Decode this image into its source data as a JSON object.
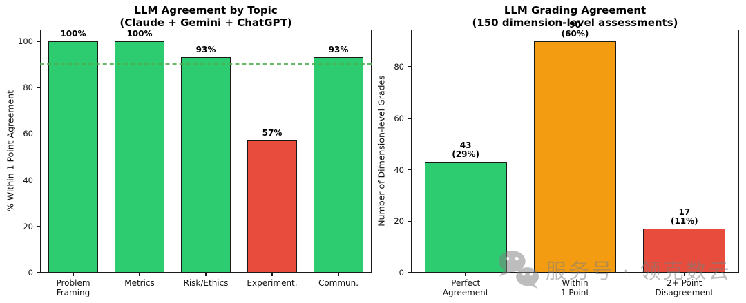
{
  "figure": {
    "background": "#ffffff",
    "text_color": "#000000",
    "edge_color": "#1a1a1a"
  },
  "colors": {
    "green": "#2ecc71",
    "red": "#e74c3c",
    "orange": "#f39c12",
    "ref_line_green": "#4caf50"
  },
  "chart_data": [
    {
      "type": "bar",
      "title": "LLM Agreement by Topic",
      "subtitle": "(Claude + Gemini + ChatGPT)",
      "xlabel": "",
      "ylabel": "% Within 1 Point Agreement",
      "categories": [
        "Problem\nFraming",
        "Metrics",
        "Risk/Ethics",
        "Experiment.",
        "Commun."
      ],
      "values": [
        100,
        100,
        93,
        57,
        93
      ],
      "bar_labels": [
        "100%",
        "100%",
        "93%",
        "57%",
        "93%"
      ],
      "bar_colors": [
        "#2ecc71",
        "#2ecc71",
        "#2ecc71",
        "#e74c3c",
        "#2ecc71"
      ],
      "ylim": [
        0,
        105
      ],
      "yticks": [
        0,
        20,
        40,
        60,
        80,
        100
      ],
      "ref_line": {
        "y": 90,
        "color": "#4caf50",
        "style": "dashed"
      },
      "grid": false,
      "legend": null
    },
    {
      "type": "bar",
      "title": "LLM Grading Agreement",
      "subtitle": "(150 dimension-level assessments)",
      "xlabel": "",
      "ylabel": "Number of Dimension-level Grades",
      "categories": [
        "Perfect\nAgreement",
        "Within\n1 Point",
        "2+ Point\nDisagreement"
      ],
      "values": [
        43,
        90,
        17
      ],
      "bar_labels": [
        "43\n(29%)",
        "90\n(60%)",
        "17\n(11%)"
      ],
      "bar_colors": [
        "#2ecc71",
        "#f39c12",
        "#e74c3c"
      ],
      "ylim": [
        0,
        94.5
      ],
      "yticks": [
        0,
        20,
        40,
        60,
        80
      ],
      "ref_line": null,
      "grid": false,
      "legend": null
    }
  ],
  "watermark": {
    "icon": "wechat-icon",
    "text": "服务号 · 领克数云"
  }
}
